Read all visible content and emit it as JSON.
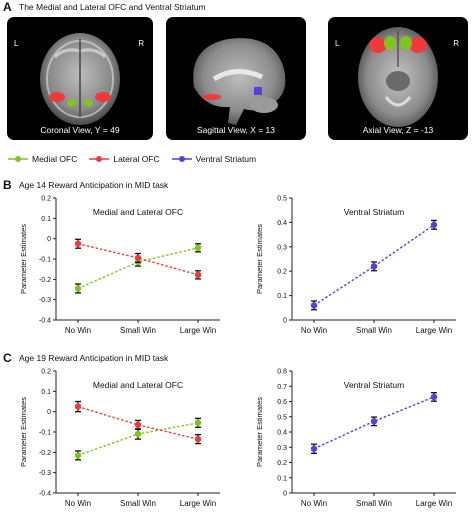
{
  "panels": {
    "a": {
      "letter": "A",
      "title": "The Medial and Lateral OFC and Ventral Striatum"
    },
    "b": {
      "letter": "B",
      "title": "Age 14 Reward Anticipation in MID task"
    },
    "c": {
      "letter": "C",
      "title": "Age 19 Reward Anticipation in MID task"
    }
  },
  "scans": [
    {
      "caption": "Coronal View, Y = 49",
      "left_label": "L",
      "right_label": "R",
      "view": "coronal"
    },
    {
      "caption": "Sagittal View, X = 13",
      "left_label": "",
      "right_label": "",
      "view": "sagittal"
    },
    {
      "caption": "Axial View, Z = -13",
      "left_label": "L",
      "right_label": "R",
      "view": "axial"
    }
  ],
  "region_colors": {
    "medial_ofc": "#7fc41f",
    "lateral_ofc": "#ee3a3a",
    "ventral_striatum": "#5a3fd6"
  },
  "legend": [
    {
      "label": "Medial OFC",
      "color": "#7fc41f"
    },
    {
      "label": "Lateral OFC",
      "color": "#ee3a3a"
    },
    {
      "label": "Ventral Striatum",
      "color": "#5a3fd6"
    }
  ],
  "chart_data": [
    {
      "id": "b_ofc",
      "type": "line",
      "title": "Medial and Lateral OFC",
      "ylabel": "Parameter Estimates",
      "xlabel": "",
      "categories": [
        "No Win",
        "Small Win",
        "Large Win"
      ],
      "ylim": [
        -0.4,
        0.2
      ],
      "yticks": [
        "0.2",
        "0.1",
        "0",
        "-0.1",
        "-0.2",
        "-0.3",
        "-0.4"
      ],
      "series": [
        {
          "name": "Medial OFC",
          "color": "#7fc41f",
          "values": [
            -0.245,
            -0.115,
            -0.045
          ],
          "errors": [
            0.022,
            0.02,
            0.02
          ]
        },
        {
          "name": "Lateral OFC",
          "color": "#ee3a3a",
          "values": [
            -0.025,
            -0.095,
            -0.178
          ],
          "errors": [
            0.022,
            0.022,
            0.02
          ]
        }
      ]
    },
    {
      "id": "b_vs",
      "type": "line",
      "title": "Ventral Striatum",
      "ylabel": "Parameter Estimates",
      "xlabel": "",
      "categories": [
        "No Win",
        "Small Win",
        "Large Win"
      ],
      "ylim": [
        0,
        0.5
      ],
      "yticks": [
        "0.5",
        "0.4",
        "0.3",
        "0.2",
        "0.1",
        "0"
      ],
      "series": [
        {
          "name": "Ventral Striatum",
          "color": "#5a3fd6",
          "values": [
            0.06,
            0.22,
            0.39
          ],
          "errors": [
            0.018,
            0.018,
            0.018
          ]
        }
      ]
    },
    {
      "id": "c_ofc",
      "type": "line",
      "title": "Medial and Lateral OFC",
      "ylabel": "Parameter Estimates",
      "xlabel": "",
      "categories": [
        "No Win",
        "Small Win",
        "Large Win"
      ],
      "ylim": [
        -0.4,
        0.2
      ],
      "yticks": [
        "0.2",
        "0.1",
        "0",
        "-0.1",
        "-0.2",
        "-0.3",
        "-0.4"
      ],
      "series": [
        {
          "name": "Medial OFC",
          "color": "#7fc41f",
          "values": [
            -0.215,
            -0.11,
            -0.055
          ],
          "errors": [
            0.022,
            0.025,
            0.022
          ]
        },
        {
          "name": "Lateral OFC",
          "color": "#ee3a3a",
          "values": [
            0.025,
            -0.065,
            -0.135
          ],
          "errors": [
            0.025,
            0.022,
            0.022
          ]
        }
      ]
    },
    {
      "id": "c_vs",
      "type": "line",
      "title": "Ventral Striatum",
      "ylabel": "Parameter Estimates",
      "xlabel": "",
      "categories": [
        "No Win",
        "Small Win",
        "Large Win"
      ],
      "ylim": [
        0,
        0.8
      ],
      "yticks": [
        "0.8",
        "0.7",
        "0.6",
        "0.5",
        "0.4",
        "0.3",
        "0.2",
        "0.1",
        "0"
      ],
      "series": [
        {
          "name": "Ventral Striatum",
          "color": "#5a3fd6",
          "values": [
            0.29,
            0.47,
            0.63
          ],
          "errors": [
            0.03,
            0.028,
            0.028
          ]
        }
      ]
    }
  ]
}
